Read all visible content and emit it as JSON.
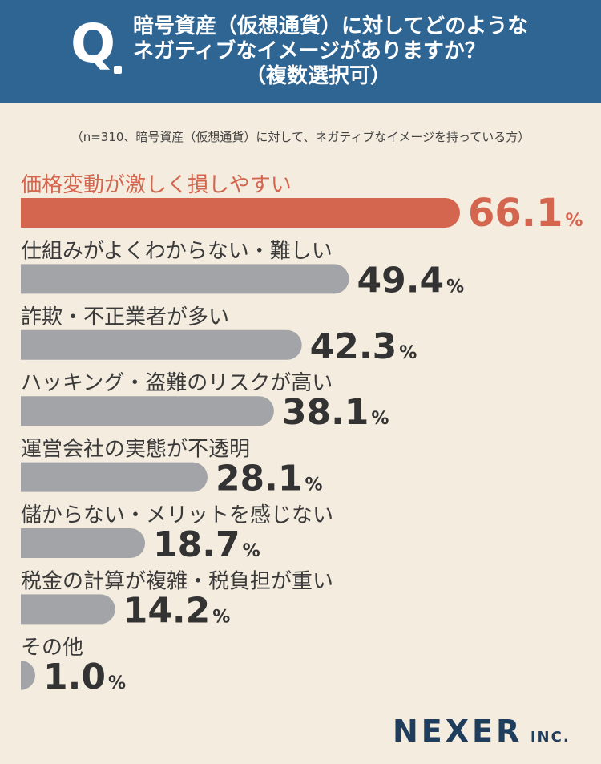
{
  "header": {
    "q_mark": "Q",
    "line1": "暗号資産（仮想通貨）に対してどのような",
    "line2": "ネガティブなイメージがありますか？",
    "line3": "（複数選択可）"
  },
  "note": "（n=310、暗号資産（仮想通貨）に対して、ネガティブなイメージを持っている方）",
  "chart_data": {
    "type": "bar",
    "orientation": "horizontal",
    "unit": "%",
    "xlim": [
      0,
      100
    ],
    "grid": false,
    "highlight_color": "#d4664f",
    "bar_color": "#a3a4a8",
    "categories": [
      "価格変動が激しく損しやすい",
      "仕組みがよくわからない・難しい",
      "詐欺・不正業者が多い",
      "ハッキング・盗難のリスクが高い",
      "運営会社の実態が不透明",
      "儲からない・メリットを感じない",
      "税金の計算が複雑・税負担が重い",
      "その他"
    ],
    "values": [
      66.1,
      49.4,
      42.3,
      38.1,
      28.1,
      18.7,
      14.2,
      1.0
    ],
    "value_labels": [
      "66.1",
      "49.4",
      "42.3",
      "38.1",
      "28.1",
      "18.7",
      "14.2",
      "1.0"
    ]
  },
  "logo": {
    "main": "NEXER",
    "suffix": "INC."
  }
}
